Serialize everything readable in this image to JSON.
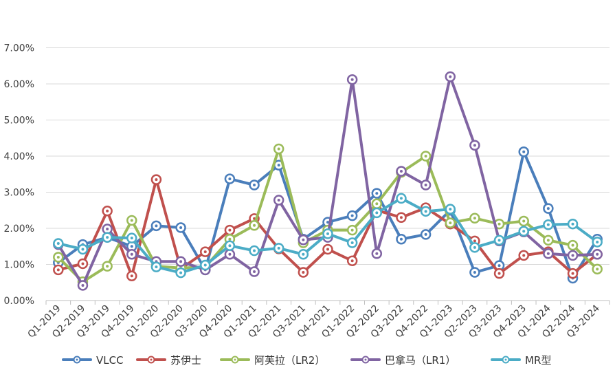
{
  "chart_data": {
    "type": "line",
    "title": "",
    "xlabel": "",
    "ylabel": "",
    "ylim": [
      0,
      7
    ],
    "y_tick_labels": [
      "0.00%",
      "1.00%",
      "2.00%",
      "3.00%",
      "4.00%",
      "5.00%",
      "6.00%",
      "7.00%"
    ],
    "grid": "horizontal",
    "legend_position": "bottom",
    "categories": [
      "Q1-2019",
      "Q2-2019",
      "Q3-2019",
      "Q4-2019",
      "Q1-2020",
      "Q2-2020",
      "Q3-2020",
      "Q4-2020",
      "Q1-2021",
      "Q2-2021",
      "Q3-2021",
      "Q4-2021",
      "Q1-2022",
      "Q2-2022",
      "Q3-2022",
      "Q4-2022",
      "Q1-2023",
      "Q2-2023",
      "Q3-2023",
      "Q4-2023",
      "Q1-2024",
      "Q2-2024",
      "Q3-2024"
    ],
    "series": [
      {
        "name": "VLCC",
        "color": "#4a7ebb",
        "values": [
          1.05,
          1.55,
          1.75,
          1.5,
          2.07,
          2.02,
          0.85,
          3.37,
          3.2,
          3.75,
          1.7,
          2.17,
          2.35,
          2.97,
          1.7,
          1.83,
          2.5,
          0.78,
          0.97,
          4.12,
          2.55,
          0.62,
          1.7
        ]
      },
      {
        "name": "苏伊士",
        "color": "#c0504d",
        "values": [
          0.85,
          1.02,
          2.48,
          0.68,
          3.35,
          0.88,
          1.35,
          1.95,
          2.27,
          1.43,
          0.78,
          1.42,
          1.1,
          2.5,
          2.3,
          2.57,
          2.12,
          1.65,
          0.75,
          1.25,
          1.35,
          0.75,
          1.28
        ]
      },
      {
        "name": "阿芙拉（LR2）",
        "color": "#9bbb59",
        "values": [
          1.2,
          0.52,
          0.95,
          2.22,
          0.95,
          0.9,
          0.93,
          1.7,
          2.08,
          4.2,
          1.6,
          1.95,
          1.95,
          2.68,
          3.55,
          4.0,
          2.15,
          2.28,
          2.12,
          2.2,
          1.67,
          1.53,
          0.87
        ]
      },
      {
        "name": "巴拿马（LR1）",
        "color": "#8064a2",
        "values": [
          1.55,
          0.42,
          1.98,
          1.28,
          1.08,
          1.08,
          0.85,
          1.28,
          0.8,
          2.78,
          1.68,
          1.75,
          6.12,
          1.3,
          3.58,
          3.2,
          6.2,
          4.3,
          1.65,
          1.9,
          1.3,
          1.25,
          1.28
        ]
      },
      {
        "name": "MR型",
        "color": "#4bacc6",
        "values": [
          1.58,
          1.42,
          1.75,
          1.73,
          0.93,
          0.77,
          0.98,
          1.52,
          1.38,
          1.45,
          1.28,
          1.85,
          1.6,
          2.43,
          2.83,
          2.47,
          2.53,
          1.47,
          1.67,
          1.92,
          2.1,
          2.12,
          1.62
        ]
      }
    ]
  }
}
